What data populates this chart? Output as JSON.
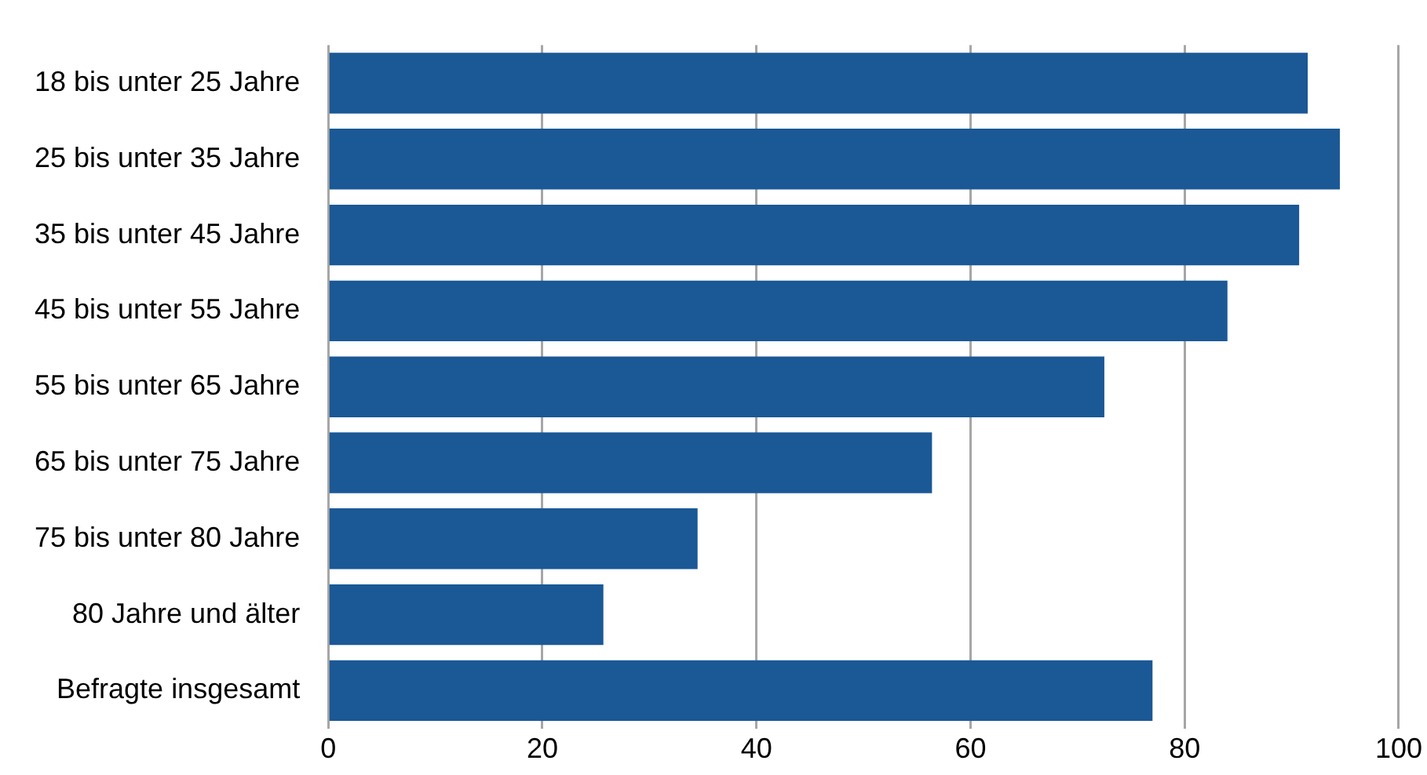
{
  "chart_data": {
    "type": "bar",
    "orientation": "horizontal",
    "categories": [
      "18 bis unter 25 Jahre",
      "25 bis unter 35 Jahre",
      "35 bis unter 45 Jahre",
      "45 bis unter 55 Jahre",
      "55 bis unter 65 Jahre",
      "65 bis unter 75 Jahre",
      "75 bis unter 80 Jahre",
      "80 Jahre und älter",
      "Befragte insgesamt"
    ],
    "values": [
      91.5,
      94.5,
      90.7,
      84,
      72.5,
      56.4,
      34.5,
      25.7,
      77
    ],
    "color": "#1a5896",
    "xlim": [
      0,
      100
    ],
    "xticks": [
      0,
      20,
      40,
      60,
      80,
      100
    ],
    "grid": "x",
    "legend": false
  }
}
